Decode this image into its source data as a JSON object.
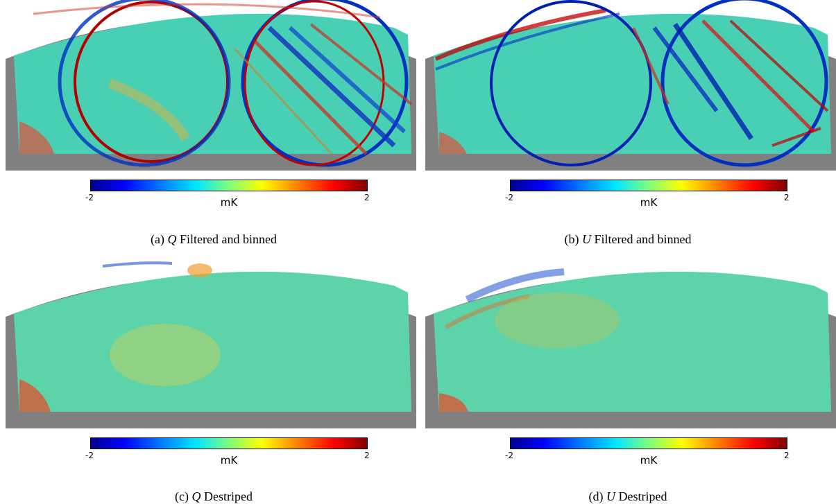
{
  "panels": [
    {
      "label": "(a)",
      "stokes": "Q",
      "title": "Filtered and binned",
      "colorbar": {
        "min": "-2",
        "max": "2",
        "unit": "mK"
      }
    },
    {
      "label": "(b)",
      "stokes": "U",
      "title": "Filtered and binned",
      "colorbar": {
        "min": "-2",
        "max": "2",
        "unit": "mK"
      }
    },
    {
      "label": "(c)",
      "stokes": "Q",
      "title": "Destriped",
      "colorbar": {
        "min": "-2",
        "max": "2",
        "unit": "mK"
      }
    },
    {
      "label": "(d)",
      "stokes": "U",
      "title": "Destriped",
      "colorbar": {
        "min": "-2",
        "max": "2",
        "unit": "mK"
      }
    }
  ],
  "colors": {
    "mask": "#808080",
    "background": "#3cc8c0"
  }
}
